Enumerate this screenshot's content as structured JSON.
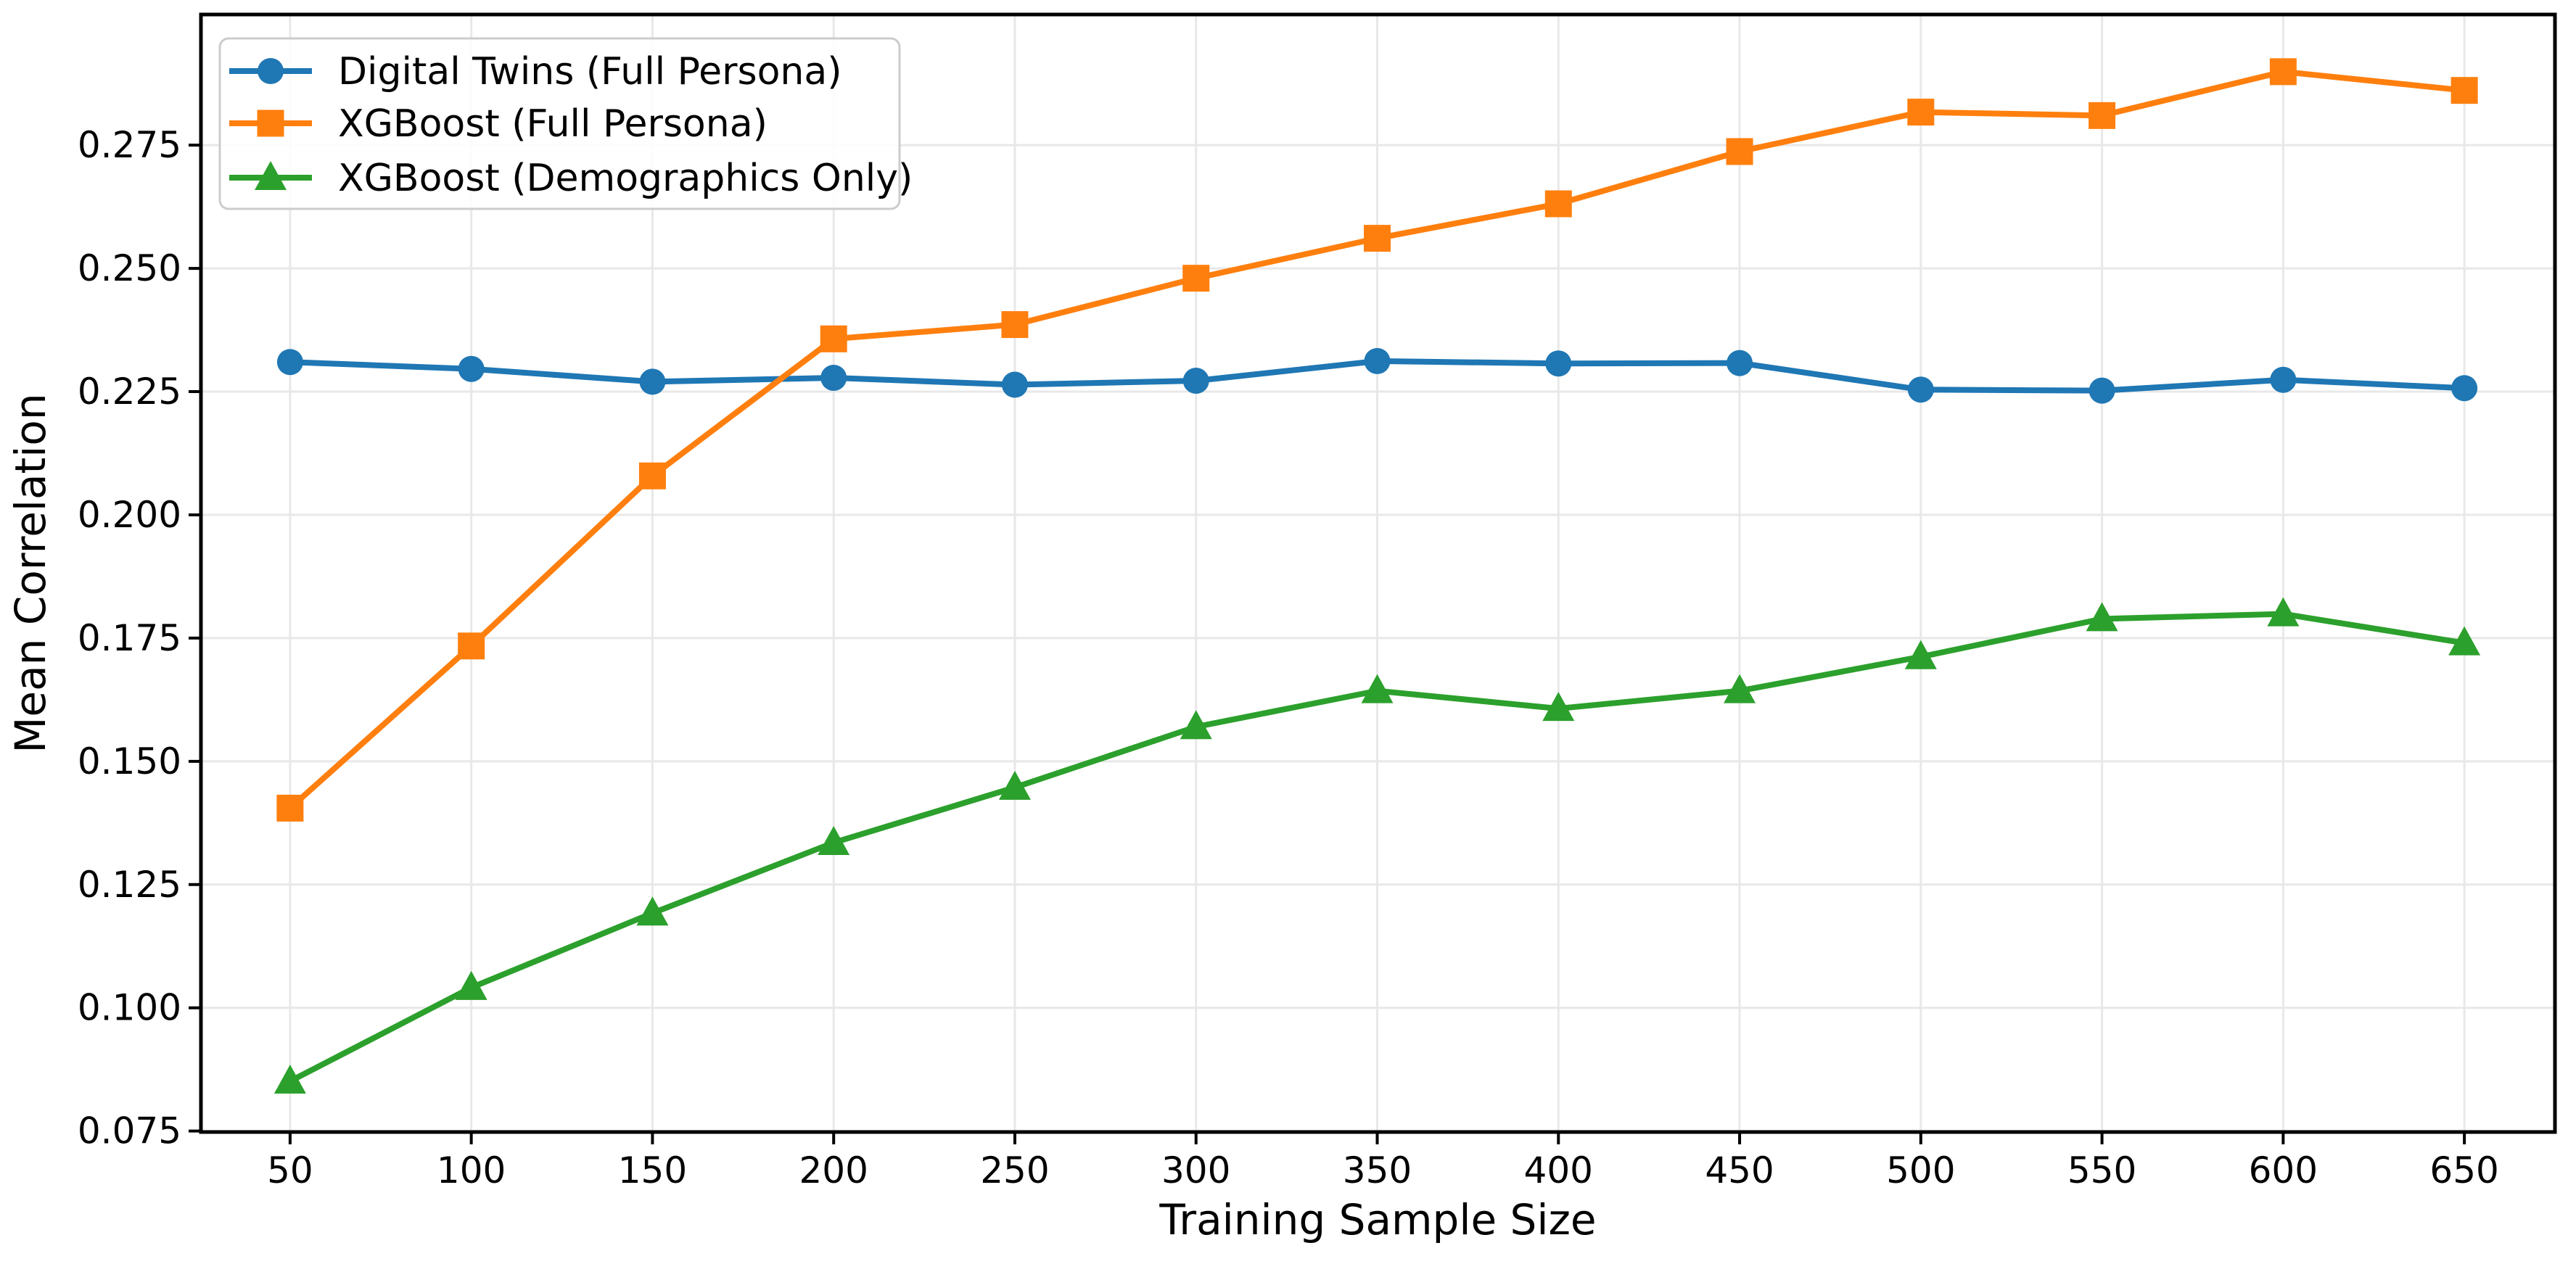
{
  "chart_data": {
    "type": "line",
    "title": "",
    "xlabel": "Training Sample Size",
    "ylabel": "Mean Correlation",
    "x": [
      50,
      100,
      150,
      200,
      250,
      300,
      350,
      400,
      450,
      500,
      550,
      600,
      650
    ],
    "series": [
      {
        "name": "Digital Twins (Full Persona)",
        "color": "#1f77b4",
        "marker": "circle",
        "values": [
          0.231,
          0.2296,
          0.227,
          0.2278,
          0.2264,
          0.2272,
          0.2312,
          0.2307,
          0.2308,
          0.2254,
          0.2252,
          0.2274,
          0.2257
        ]
      },
      {
        "name": "XGBoost (Full Persona)",
        "color": "#ff7f0e",
        "marker": "square",
        "values": [
          0.1405,
          0.1734,
          0.2079,
          0.2357,
          0.2386,
          0.248,
          0.2561,
          0.2631,
          0.2737,
          0.2817,
          0.281,
          0.2899,
          0.2861
        ]
      },
      {
        "name": "XGBoost (Demographics Only)",
        "color": "#2ca02c",
        "marker": "triangle",
        "values": [
          0.0851,
          0.1041,
          0.1192,
          0.1335,
          0.1447,
          0.157,
          0.1643,
          0.1607,
          0.1643,
          0.1712,
          0.1789,
          0.1799,
          0.174
        ]
      }
    ],
    "xlim": [
      25.4,
      675.0
    ],
    "ylim": [
      0.0748,
      0.3015
    ],
    "xticks": [
      50,
      100,
      150,
      200,
      250,
      300,
      350,
      400,
      450,
      500,
      550,
      600,
      650
    ],
    "xtick_labels": [
      "50",
      "100",
      "150",
      "200",
      "250",
      "300",
      "350",
      "400",
      "450",
      "500",
      "550",
      "600",
      "650"
    ],
    "yticks": [
      0.075,
      0.1,
      0.125,
      0.15,
      0.175,
      0.2,
      0.225,
      0.25,
      0.275
    ],
    "ytick_labels": [
      "0.075",
      "0.100",
      "0.125",
      "0.150",
      "0.175",
      "0.200",
      "0.225",
      "0.250",
      "0.275"
    ],
    "grid": true,
    "grid_color": "#e8e8e8",
    "spine_color": "#000000",
    "legend_position": "upper left",
    "legend_border_color": "#cccccc",
    "legend_background": "#ffffff"
  }
}
